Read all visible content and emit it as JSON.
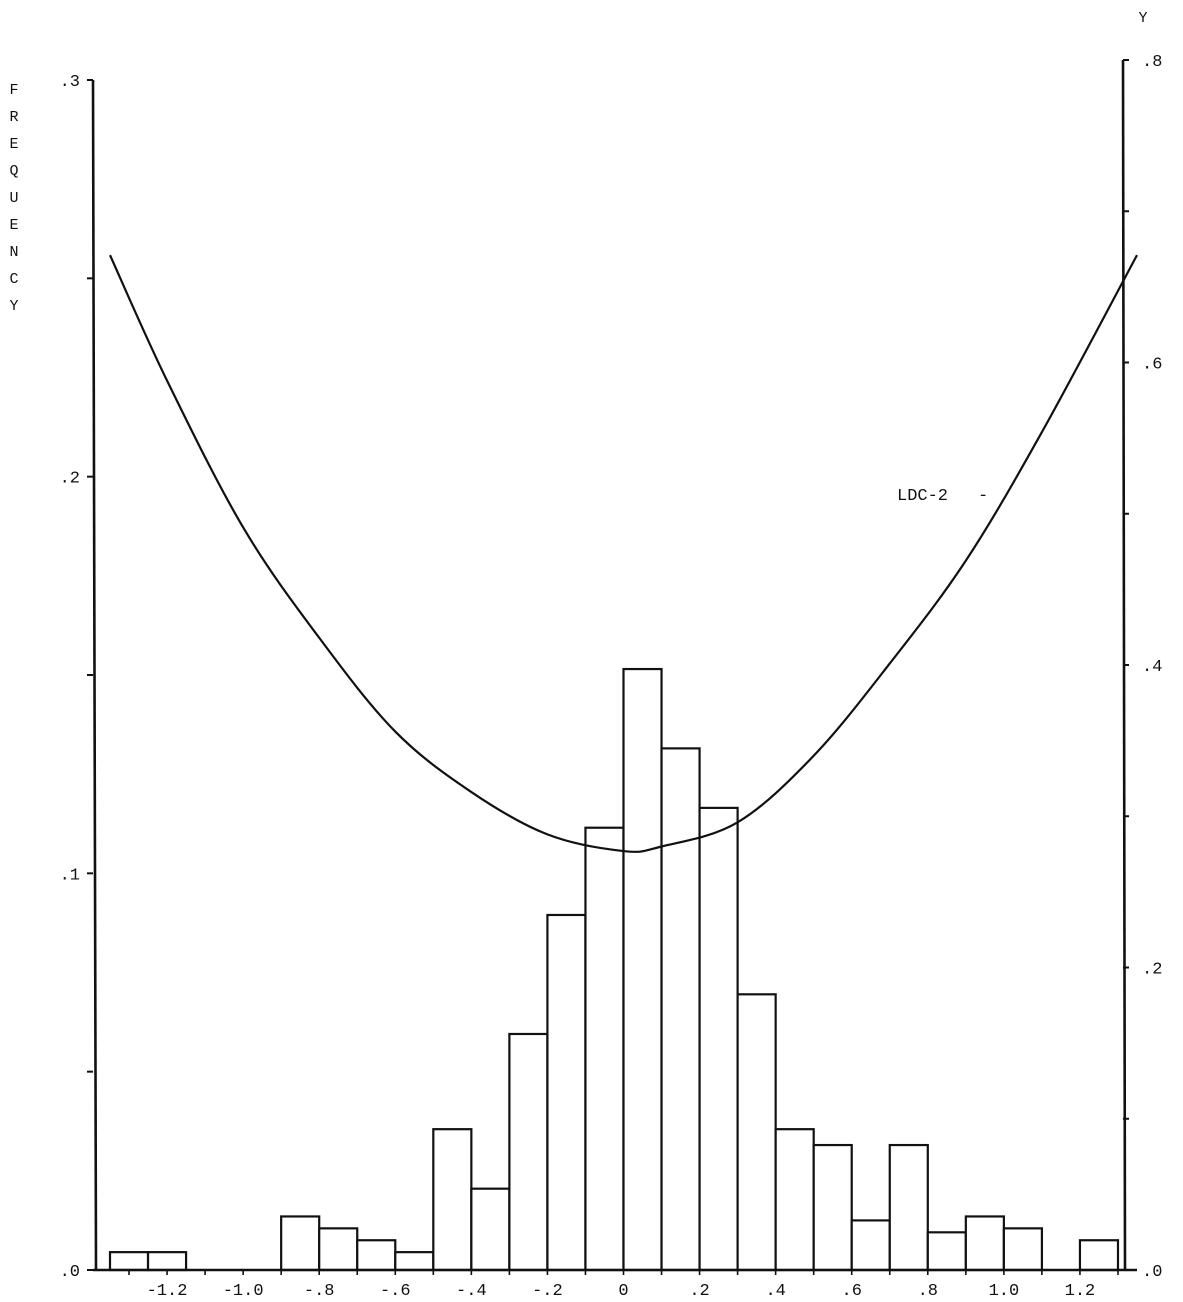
{
  "chart_data": {
    "type": "bar",
    "left_axis": {
      "title": "FREQUENCY",
      "range": [
        0,
        0.3
      ],
      "ticks": [
        ".0",
        ".1",
        ".2",
        ".3"
      ],
      "tick_values": [
        0.0,
        0.1,
        0.2,
        0.3
      ]
    },
    "right_axis": {
      "title": "Y",
      "range": [
        0,
        0.8
      ],
      "ticks": [
        ".0",
        ".2",
        ".4",
        ".6",
        ".8"
      ],
      "tick_values": [
        0.0,
        0.2,
        0.4,
        0.6,
        0.8
      ]
    },
    "x_axis": {
      "range": [
        -1.35,
        1.35
      ],
      "ticks": [
        "-1.2",
        "-1.0",
        "-.8",
        "-.6",
        "-.4",
        "-.2",
        "0",
        ".2",
        ".4",
        ".6",
        ".8",
        "1.0",
        "1.2"
      ],
      "tick_values": [
        -1.2,
        -1.0,
        -0.8,
        -0.6,
        -0.4,
        -0.2,
        0,
        0.2,
        0.4,
        0.6,
        0.8,
        1.0,
        1.2
      ]
    },
    "histogram": {
      "bin_width": 0.1,
      "bins": [
        {
          "x0": -1.35,
          "x1": -1.25,
          "value": 0.0045
        },
        {
          "x0": -1.25,
          "x1": -1.15,
          "value": 0.0045
        },
        {
          "x0": -0.9,
          "x1": -0.8,
          "value": 0.0135
        },
        {
          "x0": -0.8,
          "x1": -0.7,
          "value": 0.0105
        },
        {
          "x0": -0.7,
          "x1": -0.6,
          "value": 0.0075
        },
        {
          "x0": -0.6,
          "x1": -0.5,
          "value": 0.0045
        },
        {
          "x0": -0.5,
          "x1": -0.4,
          "value": 0.0355
        },
        {
          "x0": -0.4,
          "x1": -0.3,
          "value": 0.0205
        },
        {
          "x0": -0.3,
          "x1": -0.2,
          "value": 0.0595
        },
        {
          "x0": -0.2,
          "x1": -0.1,
          "value": 0.0895
        },
        {
          "x0": -0.1,
          "x1": 0.0,
          "value": 0.1115
        },
        {
          "x0": 0.0,
          "x1": 0.1,
          "value": 0.1515
        },
        {
          "x0": 0.1,
          "x1": 0.2,
          "value": 0.1315
        },
        {
          "x0": 0.2,
          "x1": 0.3,
          "value": 0.1165
        },
        {
          "x0": 0.3,
          "x1": 0.4,
          "value": 0.0695
        },
        {
          "x0": 0.4,
          "x1": 0.5,
          "value": 0.0355
        },
        {
          "x0": 0.5,
          "x1": 0.6,
          "value": 0.0315
        },
        {
          "x0": 0.6,
          "x1": 0.7,
          "value": 0.0125
        },
        {
          "x0": 0.7,
          "x1": 0.8,
          "value": 0.0315
        },
        {
          "x0": 0.8,
          "x1": 0.9,
          "value": 0.0095
        },
        {
          "x0": 0.9,
          "x1": 1.0,
          "value": 0.0135
        },
        {
          "x0": 1.0,
          "x1": 1.1,
          "value": 0.0105
        },
        {
          "x0": 1.2,
          "x1": 1.3,
          "value": 0.0075
        }
      ]
    },
    "curve": {
      "name": "LDC-2",
      "axis": "right",
      "points": [
        {
          "x": -1.35,
          "y": 0.671
        },
        {
          "x": -1.2,
          "y": 0.588
        },
        {
          "x": -1.0,
          "y": 0.491
        },
        {
          "x": -0.8,
          "y": 0.418
        },
        {
          "x": -0.6,
          "y": 0.356
        },
        {
          "x": -0.4,
          "y": 0.316
        },
        {
          "x": -0.2,
          "y": 0.288
        },
        {
          "x": 0.0,
          "y": 0.277
        },
        {
          "x": 0.1,
          "y": 0.28
        },
        {
          "x": 0.3,
          "y": 0.296
        },
        {
          "x": 0.5,
          "y": 0.34
        },
        {
          "x": 0.7,
          "y": 0.401
        },
        {
          "x": 0.9,
          "y": 0.469
        },
        {
          "x": 1.1,
          "y": 0.554
        },
        {
          "x": 1.35,
          "y": 0.671
        }
      ]
    }
  }
}
